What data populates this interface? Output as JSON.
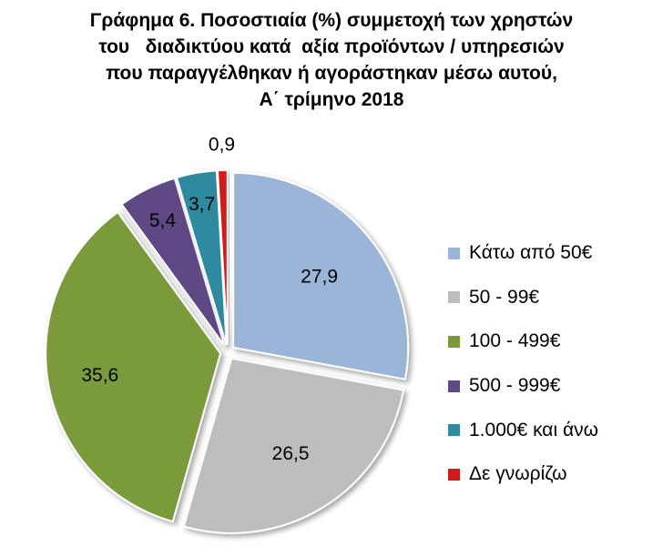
{
  "title_lines": [
    "Γράφημα 6. Ποσοστιαία (%) συμμετοχή των χρηστών",
    "του   διαδικτύου κατά  αξία προϊόντων / υπηρεσιών",
    "που παραγγέλθηκαν ή αγοράστηκαν μέσω αυτού,",
    "Α΄ τρίμηνο 2018"
  ],
  "chart_data": {
    "type": "pie",
    "title": "Γράφημα 6. Ποσοστιαία (%) συμμετοχή των χρηστών του διαδικτύου κατά αξία προϊόντων / υπηρεσιών που παραγγέλθηκαν ή αγοράστηκαν μέσω αυτού, Α΄ τρίμηνο 2018",
    "categories": [
      "Κάτω από 50€",
      "50 - 99€",
      "100 - 499€",
      "500 - 999€",
      "1.000€ και άνω",
      "Δε γνωρίζω"
    ],
    "values": [
      27.9,
      26.5,
      35.6,
      5.4,
      3.7,
      0.9
    ],
    "data_labels": [
      "27,9",
      "26,5",
      "35,6",
      "5,4",
      "3,7",
      "0,9"
    ],
    "colors": [
      "#9bb5d9",
      "#bdbdbd",
      "#7a9a3a",
      "#5e4a85",
      "#2e8a9e",
      "#d11a1a"
    ],
    "legend_position": "right",
    "exploded": true
  }
}
